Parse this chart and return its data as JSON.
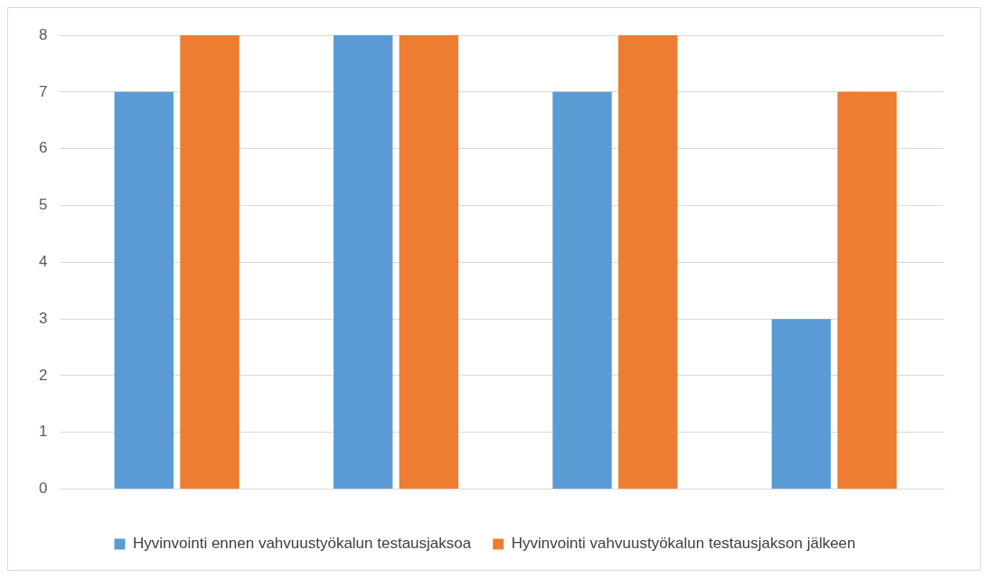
{
  "chart_data": {
    "type": "bar",
    "categories": [
      null,
      null,
      null,
      null
    ],
    "series": [
      {
        "name": "Hyvinvointi ennen vahvuustyökalun testausjaksoa",
        "color": "#5b9bd5",
        "values": [
          7,
          8,
          7,
          3
        ]
      },
      {
        "name": "Hyvinvointi vahvuustyökalun testausjakson jälkeen",
        "color": "#ed7d31",
        "values": [
          8,
          8,
          8,
          7
        ]
      }
    ],
    "ylim": [
      0,
      8
    ],
    "yticks": [
      0,
      1,
      2,
      3,
      4,
      5,
      6,
      7,
      8
    ],
    "grid": "y",
    "legend": "bottom"
  }
}
